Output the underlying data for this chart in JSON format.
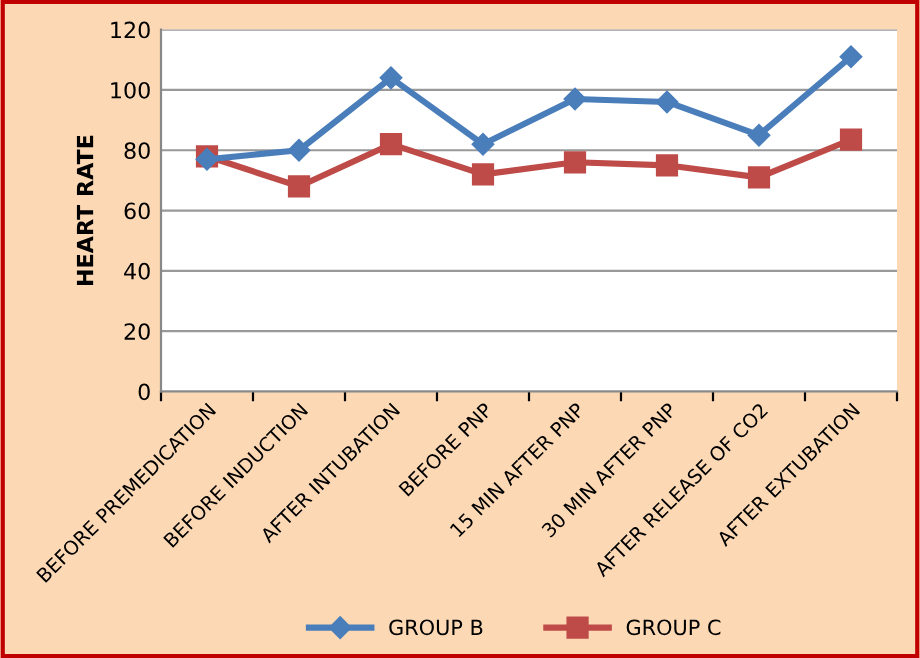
{
  "chart_data": {
    "type": "line",
    "ylabel": "HEART RATE",
    "categories": [
      "BEFORE PREMEDICATION",
      "BEFORE INDUCTION",
      "AFTER INTUBATION",
      "BEFORE PNP",
      "15 MIN AFTER PNP",
      "30 MIN AFTER PNP",
      "AFTER RELEASE OF CO2",
      "AFTER EXTUBATION"
    ],
    "series": [
      {
        "name": "GROUP B",
        "color": "#4a7ebb",
        "marker": "diamond",
        "values": [
          77,
          80,
          104,
          82,
          97,
          96,
          85,
          111
        ]
      },
      {
        "name": "GROUP C",
        "color": "#be4b48",
        "marker": "square",
        "values": [
          78,
          68,
          82,
          72,
          76,
          75,
          71,
          83.5
        ]
      }
    ],
    "ylim": [
      0,
      120
    ],
    "yticks": [
      0,
      20,
      40,
      60,
      80,
      100,
      120
    ],
    "grid": "y",
    "legend": "bottom",
    "line_style": "solid"
  }
}
